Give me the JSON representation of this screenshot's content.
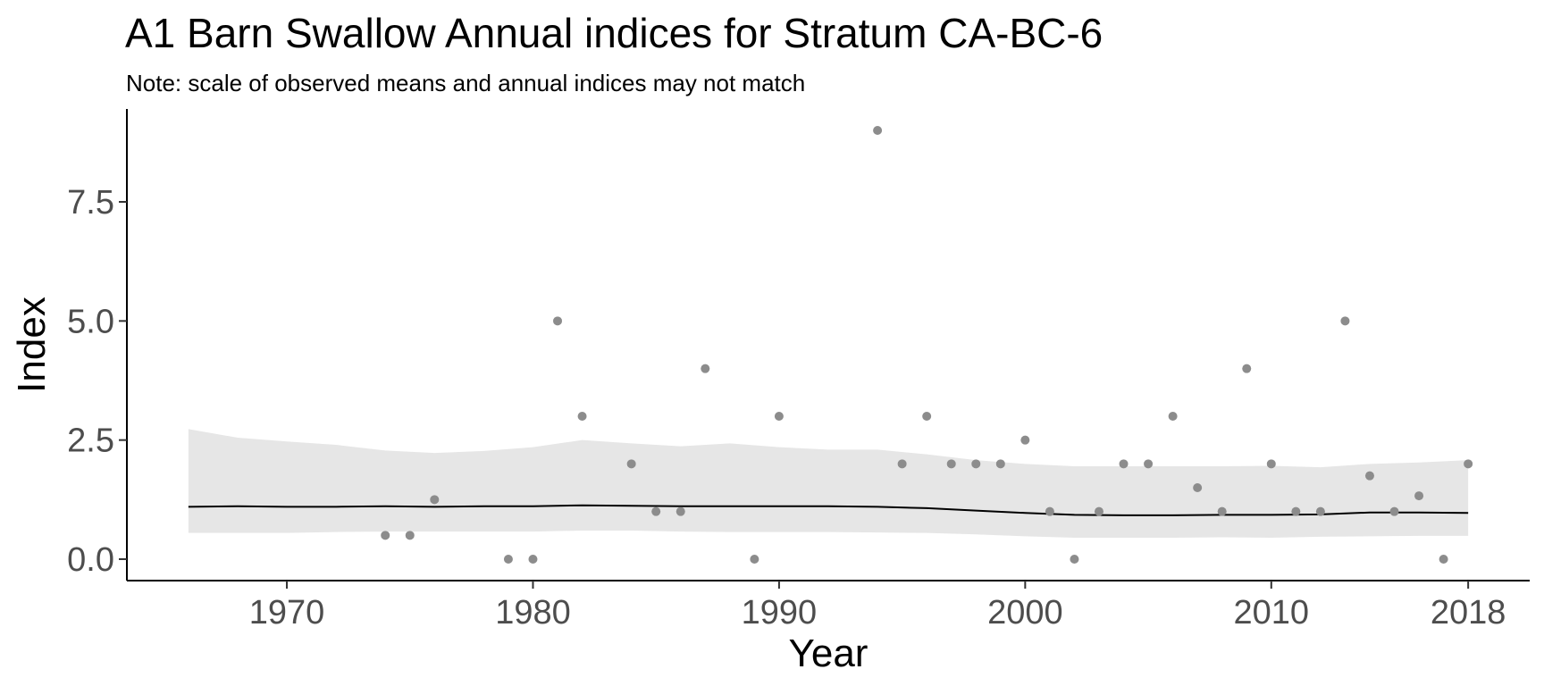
{
  "title": "A1 Barn Swallow Annual indices for Stratum CA-BC-6",
  "subtitle": "Note: scale of observed means and annual indices may not match",
  "chart_data": {
    "type": "line",
    "xlabel": "Year",
    "ylabel": "Index",
    "xlim": [
      1963.5,
      2020.5
    ],
    "ylim": [
      -0.45,
      9.45
    ],
    "x_ticks": [
      1970,
      1980,
      1990,
      2000,
      2010,
      2018
    ],
    "y_ticks": [
      0.0,
      2.5,
      5.0,
      7.5
    ],
    "y_tick_labels": [
      "0.0",
      "2.5",
      "5.0",
      "7.5"
    ],
    "grid": false,
    "colors": {
      "ribbon": "#e6e6e6",
      "line": "#000000",
      "points": "#8c8c8c",
      "axis": "#000000"
    },
    "series": [
      {
        "type": "line",
        "x": [
          1966,
          1968,
          1970,
          1972,
          1974,
          1976,
          1978,
          1980,
          1982,
          1984,
          1986,
          1988,
          1990,
          1992,
          1994,
          1996,
          1998,
          2000,
          2002,
          2004,
          2006,
          2008,
          2010,
          2012,
          2014,
          2016,
          2018
        ],
        "y": [
          1.1,
          1.11,
          1.1,
          1.1,
          1.11,
          1.1,
          1.11,
          1.11,
          1.13,
          1.12,
          1.11,
          1.11,
          1.11,
          1.11,
          1.1,
          1.07,
          1.02,
          0.97,
          0.93,
          0.92,
          0.92,
          0.93,
          0.93,
          0.94,
          0.98,
          0.98,
          0.97
        ]
      },
      {
        "type": "band",
        "x": [
          1966,
          1968,
          1970,
          1972,
          1974,
          1976,
          1978,
          1980,
          1982,
          1984,
          1986,
          1988,
          1990,
          1992,
          1994,
          1996,
          1998,
          2000,
          2002,
          2004,
          2006,
          2008,
          2010,
          2012,
          2014,
          2016,
          2018
        ],
        "upper": [
          2.73,
          2.55,
          2.47,
          2.4,
          2.28,
          2.23,
          2.27,
          2.35,
          2.5,
          2.43,
          2.37,
          2.43,
          2.35,
          2.3,
          2.3,
          2.2,
          2.08,
          2.0,
          1.95,
          1.95,
          1.95,
          1.95,
          1.96,
          1.93,
          2.0,
          2.03,
          2.08
        ],
        "lower": [
          0.55,
          0.55,
          0.55,
          0.57,
          0.58,
          0.58,
          0.58,
          0.58,
          0.6,
          0.6,
          0.58,
          0.57,
          0.57,
          0.57,
          0.56,
          0.55,
          0.52,
          0.48,
          0.45,
          0.45,
          0.45,
          0.46,
          0.45,
          0.47,
          0.48,
          0.49,
          0.49
        ]
      },
      {
        "type": "scatter",
        "x": [
          1974,
          1975,
          1976,
          1979,
          1980,
          1981,
          1982,
          1984,
          1985,
          1986,
          1987,
          1989,
          1990,
          1994,
          1995,
          1996,
          1997,
          1998,
          1999,
          2000,
          2001,
          2002,
          2003,
          2004,
          2005,
          2006,
          2007,
          2008,
          2009,
          2010,
          2011,
          2012,
          2013,
          2014,
          2015,
          2016,
          2017,
          2018
        ],
        "y": [
          0.5,
          0.5,
          1.25,
          0.0,
          0.0,
          5.0,
          3.0,
          2.0,
          1.0,
          1.0,
          4.0,
          0.0,
          3.0,
          9.0,
          2.0,
          3.0,
          2.0,
          2.0,
          2.0,
          2.5,
          1.0,
          0.0,
          1.0,
          2.0,
          2.0,
          3.0,
          1.5,
          1.0,
          4.0,
          2.0,
          1.0,
          1.0,
          5.0,
          1.75,
          1.0,
          1.33,
          0.0,
          2.0
        ]
      }
    ]
  }
}
